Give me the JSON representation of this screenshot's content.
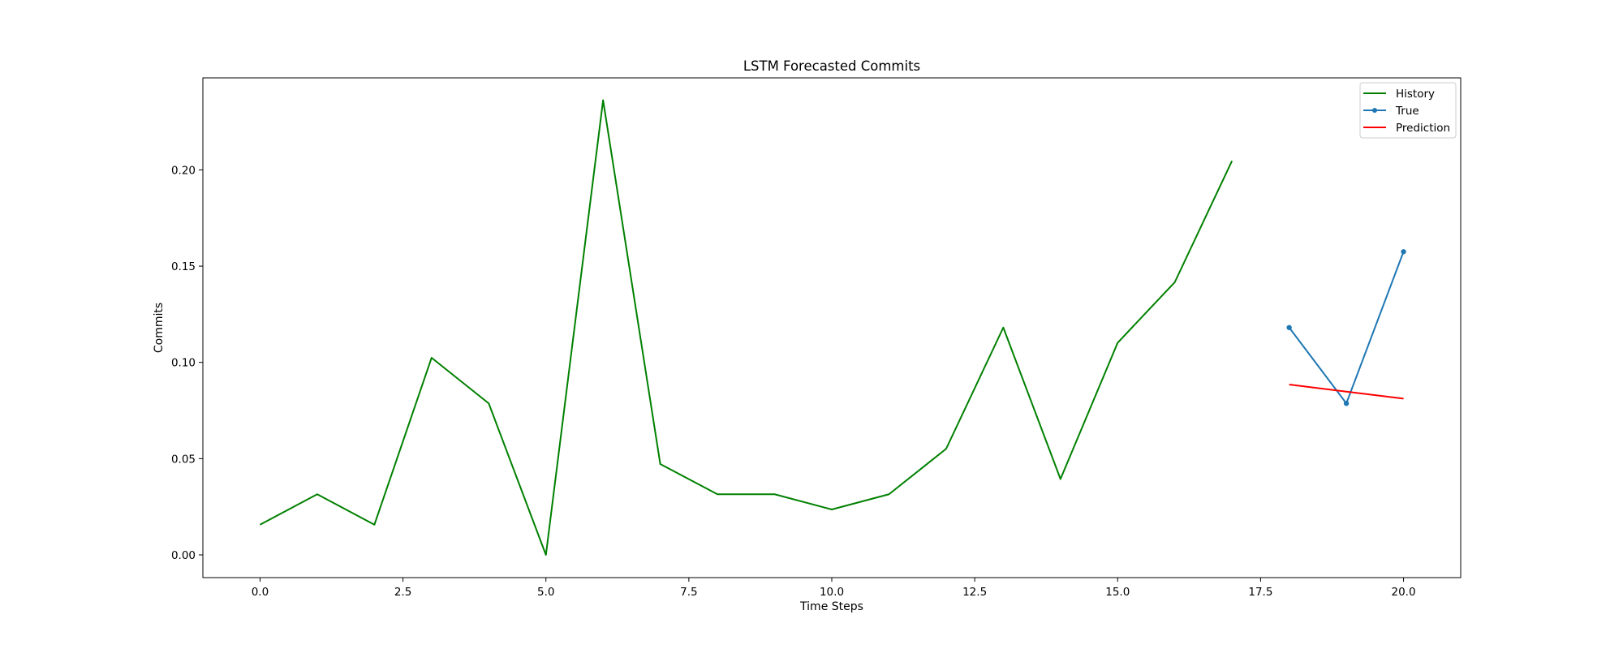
{
  "chart_data": {
    "type": "line",
    "title": "LSTM Forecasted Commits",
    "xlabel": "Time Steps",
    "ylabel": "Commits",
    "xlim": [
      -1,
      21
    ],
    "ylim": [
      -0.0118,
      0.2478
    ],
    "xticks": [
      0.0,
      2.5,
      5.0,
      7.5,
      10.0,
      12.5,
      15.0,
      17.5,
      20.0
    ],
    "xtick_labels": [
      "0.0",
      "2.5",
      "5.0",
      "7.5",
      "10.0",
      "12.5",
      "15.0",
      "17.5",
      "20.0"
    ],
    "yticks": [
      0.0,
      0.05,
      0.1,
      0.15,
      0.2
    ],
    "ytick_labels": [
      "0.00",
      "0.05",
      "0.10",
      "0.15",
      "0.20"
    ],
    "grid": false,
    "legend_position": "top-right",
    "series": [
      {
        "name": "History",
        "color": "#008000",
        "marker": false,
        "x": [
          0,
          1,
          2,
          3,
          4,
          5,
          6,
          7,
          8,
          9,
          10,
          11,
          12,
          13,
          14,
          15,
          16,
          17
        ],
        "y": [
          0.0157,
          0.0315,
          0.0157,
          0.1024,
          0.0787,
          0.0,
          0.2362,
          0.0472,
          0.0315,
          0.0315,
          0.0236,
          0.0315,
          0.0551,
          0.1181,
          0.0394,
          0.1102,
          0.1417,
          0.2047
        ]
      },
      {
        "name": "True",
        "color": "#1f77b4",
        "marker": true,
        "x": [
          18,
          19,
          20
        ],
        "y": [
          0.1181,
          0.0787,
          0.1575
        ]
      },
      {
        "name": "Prediction",
        "color": "#ff0000",
        "marker": false,
        "x": [
          18,
          19,
          20
        ],
        "y": [
          0.0885,
          0.0848,
          0.0812
        ]
      }
    ]
  }
}
